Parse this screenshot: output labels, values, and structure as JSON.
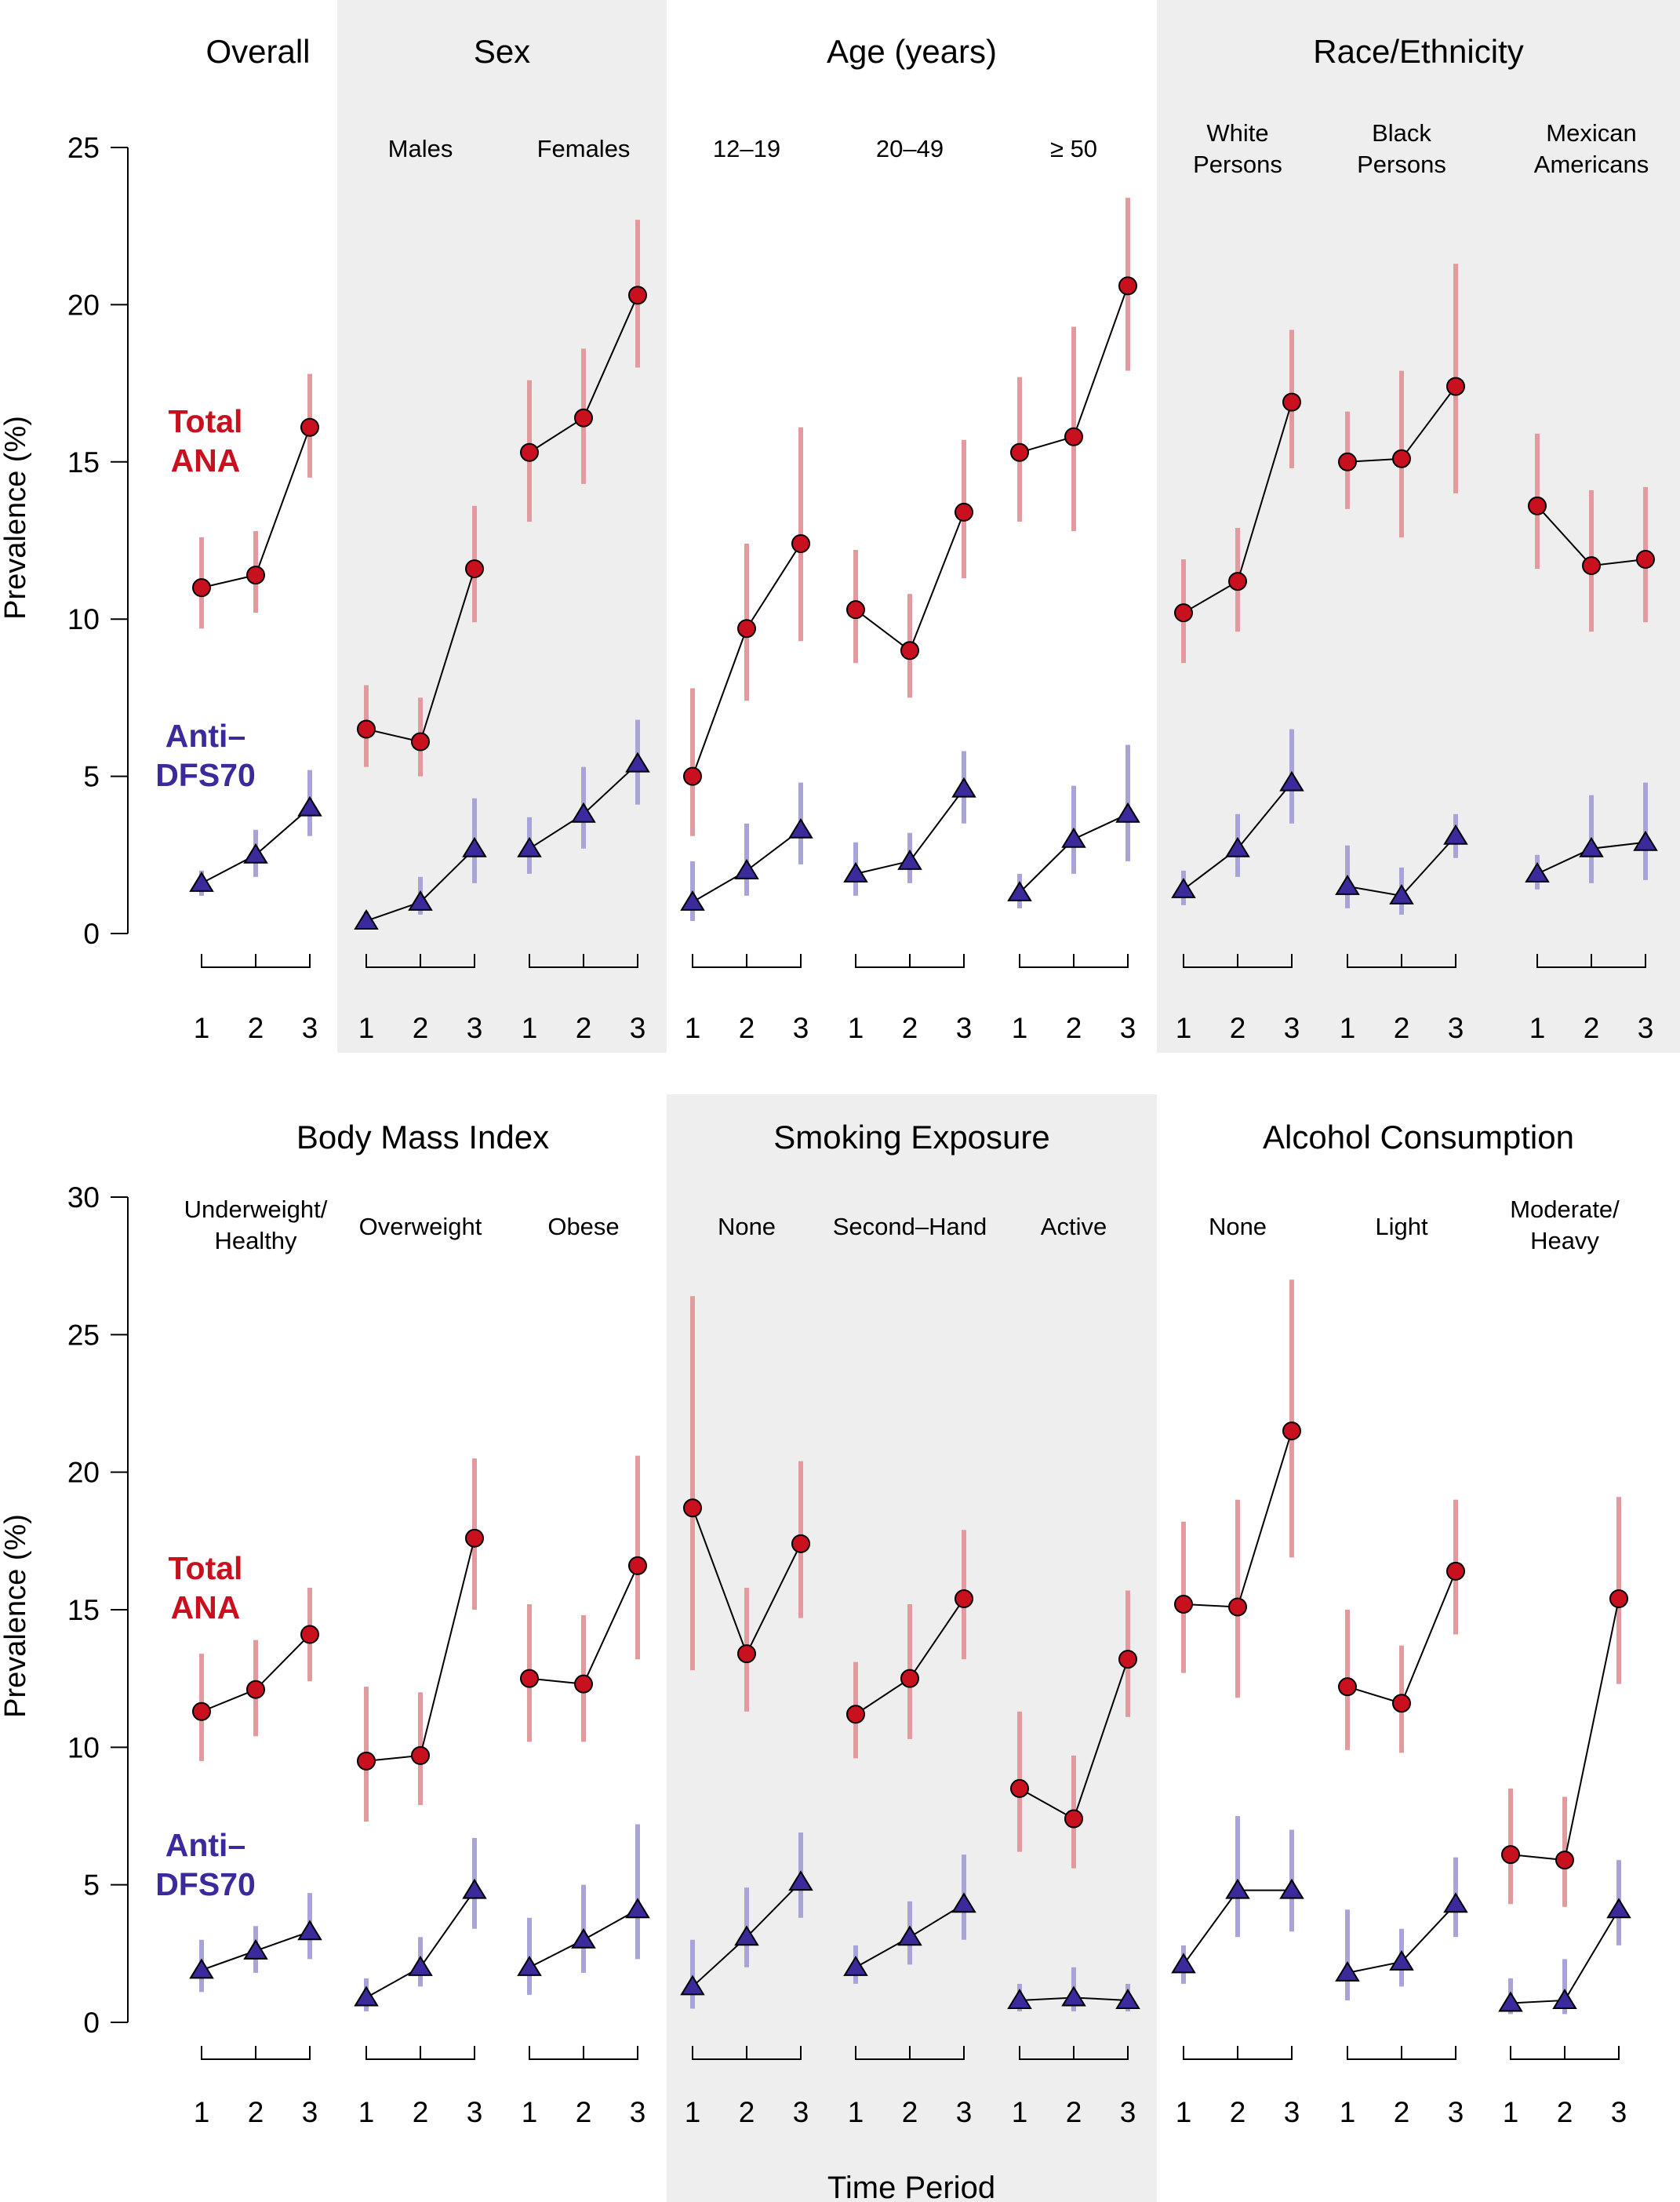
{
  "colors": {
    "ana": "#c8101e",
    "ana_ci": "#e39a9e",
    "dfs": "#3a2a9c",
    "dfs_ci": "#a8a4d8",
    "shade": "#eeeeee"
  },
  "chart_data": [
    {
      "type": "line",
      "panel": "top",
      "ylabel": "Prevalence (%)",
      "ylim": [
        0,
        25
      ],
      "yticks": [
        0,
        5,
        10,
        15,
        20,
        25
      ],
      "x": [
        1,
        2,
        3
      ],
      "xlabel": "",
      "legend": [
        {
          "line1": "Total",
          "line2": "ANA",
          "series": "Total ANA"
        },
        {
          "line1": "Anti–",
          "line2": "DFS70",
          "series": "Anti-DFS70"
        }
      ],
      "groups": [
        {
          "title": "Overall",
          "shaded": false,
          "subgroups": [
            {
              "label": [],
              "ana": [
                11.0,
                11.4,
                16.1
              ],
              "ana_ci": [
                [
                  9.7,
                  12.6
                ],
                [
                  10.2,
                  12.8
                ],
                [
                  14.5,
                  17.8
                ]
              ],
              "dfs": [
                1.6,
                2.5,
                4.0
              ],
              "dfs_ci": [
                [
                  1.2,
                  2.0
                ],
                [
                  1.8,
                  3.3
                ],
                [
                  3.1,
                  5.2
                ]
              ]
            }
          ]
        },
        {
          "title": "Sex",
          "shaded": true,
          "subgroups": [
            {
              "label": [
                "Males"
              ],
              "ana": [
                6.5,
                6.1,
                11.6
              ],
              "ana_ci": [
                [
                  5.3,
                  7.9
                ],
                [
                  5.0,
                  7.5
                ],
                [
                  9.9,
                  13.6
                ]
              ],
              "dfs": [
                0.4,
                1.0,
                2.7
              ],
              "dfs_ci": [
                [
                  0.2,
                  0.7
                ],
                [
                  0.6,
                  1.8
                ],
                [
                  1.6,
                  4.3
                ]
              ]
            },
            {
              "label": [
                "Females"
              ],
              "ana": [
                15.3,
                16.4,
                20.3
              ],
              "ana_ci": [
                [
                  13.1,
                  17.6
                ],
                [
                  14.3,
                  18.6
                ],
                [
                  18.0,
                  22.7
                ]
              ],
              "dfs": [
                2.7,
                3.8,
                5.4
              ],
              "dfs_ci": [
                [
                  1.9,
                  3.7
                ],
                [
                  2.7,
                  5.3
                ],
                [
                  4.1,
                  6.8
                ]
              ]
            }
          ]
        },
        {
          "title": "Age (years)",
          "shaded": false,
          "subgroups": [
            {
              "label": [
                "12–19"
              ],
              "ana": [
                5.0,
                9.7,
                12.4
              ],
              "ana_ci": [
                [
                  3.1,
                  7.8
                ],
                [
                  7.4,
                  12.4
                ],
                [
                  9.3,
                  16.1
                ]
              ],
              "dfs": [
                1.0,
                2.0,
                3.3
              ],
              "dfs_ci": [
                [
                  0.4,
                  2.3
                ],
                [
                  1.2,
                  3.5
                ],
                [
                  2.2,
                  4.8
                ]
              ]
            },
            {
              "label": [
                "20–49"
              ],
              "ana": [
                10.3,
                9.0,
                13.4
              ],
              "ana_ci": [
                [
                  8.6,
                  12.2
                ],
                [
                  7.5,
                  10.8
                ],
                [
                  11.3,
                  15.7
                ]
              ],
              "dfs": [
                1.9,
                2.3,
                4.6
              ],
              "dfs_ci": [
                [
                  1.2,
                  2.9
                ],
                [
                  1.6,
                  3.2
                ],
                [
                  3.5,
                  5.8
                ]
              ]
            },
            {
              "label": [
                "≥ 50"
              ],
              "ana": [
                15.3,
                15.8,
                20.6
              ],
              "ana_ci": [
                [
                  13.1,
                  17.7
                ],
                [
                  12.8,
                  19.3
                ],
                [
                  17.9,
                  23.4
                ]
              ],
              "dfs": [
                1.3,
                3.0,
                3.8
              ],
              "dfs_ci": [
                [
                  0.8,
                  1.9
                ],
                [
                  1.9,
                  4.7
                ],
                [
                  2.3,
                  6.0
                ]
              ]
            }
          ]
        },
        {
          "title": "Race/Ethnicity",
          "shaded": true,
          "subgroups": [
            {
              "label": [
                "White",
                "Persons"
              ],
              "ana": [
                10.2,
                11.2,
                16.9
              ],
              "ana_ci": [
                [
                  8.6,
                  11.9
                ],
                [
                  9.6,
                  12.9
                ],
                [
                  14.8,
                  19.2
                ]
              ],
              "dfs": [
                1.4,
                2.7,
                4.8
              ],
              "dfs_ci": [
                [
                  0.9,
                  2.0
                ],
                [
                  1.8,
                  3.8
                ],
                [
                  3.5,
                  6.5
                ]
              ]
            },
            {
              "label": [
                "Black",
                "Persons"
              ],
              "ana": [
                15.0,
                15.1,
                17.4
              ],
              "ana_ci": [
                [
                  13.5,
                  16.6
                ],
                [
                  12.6,
                  17.9
                ],
                [
                  14.0,
                  21.3
                ]
              ],
              "dfs": [
                1.5,
                1.2,
                3.1
              ],
              "dfs_ci": [
                [
                  0.8,
                  2.8
                ],
                [
                  0.6,
                  2.1
                ],
                [
                  2.4,
                  3.8
                ]
              ]
            },
            {
              "label": [
                "Mexican",
                "Americans"
              ],
              "ana": [
                13.6,
                11.7,
                11.9
              ],
              "ana_ci": [
                [
                  11.6,
                  15.9
                ],
                [
                  9.6,
                  14.1
                ],
                [
                  9.9,
                  14.2
                ]
              ],
              "dfs": [
                1.9,
                2.7,
                2.9
              ],
              "dfs_ci": [
                [
                  1.4,
                  2.5
                ],
                [
                  1.6,
                  4.4
                ],
                [
                  1.7,
                  4.8
                ]
              ]
            }
          ]
        }
      ]
    },
    {
      "type": "line",
      "panel": "bottom",
      "ylabel": "Prevalence (%)",
      "ylim": [
        0,
        30
      ],
      "yticks": [
        0,
        5,
        10,
        15,
        20,
        25,
        30
      ],
      "x": [
        1,
        2,
        3
      ],
      "xlabel": "Time Period",
      "legend": [
        {
          "line1": "Total",
          "line2": "ANA",
          "series": "Total ANA"
        },
        {
          "line1": "Anti–",
          "line2": "DFS70",
          "series": "Anti-DFS70"
        }
      ],
      "groups": [
        {
          "title": "Body Mass Index",
          "shaded": false,
          "subgroups": [
            {
              "label": [
                "Underweight/",
                "Healthy"
              ],
              "ana": [
                11.3,
                12.1,
                14.1
              ],
              "ana_ci": [
                [
                  9.5,
                  13.4
                ],
                [
                  10.4,
                  13.9
                ],
                [
                  12.4,
                  15.8
                ]
              ],
              "dfs": [
                1.9,
                2.6,
                3.3
              ],
              "dfs_ci": [
                [
                  1.1,
                  3.0
                ],
                [
                  1.8,
                  3.5
                ],
                [
                  2.3,
                  4.7
                ]
              ]
            },
            {
              "label": [
                "Overweight"
              ],
              "ana": [
                9.5,
                9.7,
                17.6
              ],
              "ana_ci": [
                [
                  7.3,
                  12.2
                ],
                [
                  7.9,
                  12.0
                ],
                [
                  15.0,
                  20.5
                ]
              ],
              "dfs": [
                0.9,
                2.0,
                4.8
              ],
              "dfs_ci": [
                [
                  0.4,
                  1.6
                ],
                [
                  1.3,
                  3.1
                ],
                [
                  3.4,
                  6.7
                ]
              ]
            },
            {
              "label": [
                "Obese"
              ],
              "ana": [
                12.5,
                12.3,
                16.6
              ],
              "ana_ci": [
                [
                  10.2,
                  15.2
                ],
                [
                  10.2,
                  14.8
                ],
                [
                  13.2,
                  20.6
                ]
              ],
              "dfs": [
                2.0,
                3.0,
                4.1
              ],
              "dfs_ci": [
                [
                  1.0,
                  3.8
                ],
                [
                  1.8,
                  5.0
                ],
                [
                  2.3,
                  7.2
                ]
              ]
            }
          ]
        },
        {
          "title": "Smoking Exposure",
          "shaded": true,
          "subgroups": [
            {
              "label": [
                "None"
              ],
              "ana": [
                18.7,
                13.4,
                17.4
              ],
              "ana_ci": [
                [
                  12.8,
                  26.4
                ],
                [
                  11.3,
                  15.8
                ],
                [
                  14.7,
                  20.4
                ]
              ],
              "dfs": [
                1.3,
                3.1,
                5.1
              ],
              "dfs_ci": [
                [
                  0.5,
                  3.0
                ],
                [
                  2.0,
                  4.9
                ],
                [
                  3.8,
                  6.9
                ]
              ]
            },
            {
              "label": [
                "Second–Hand"
              ],
              "ana": [
                11.2,
                12.5,
                15.4
              ],
              "ana_ci": [
                [
                  9.6,
                  13.1
                ],
                [
                  10.3,
                  15.2
                ],
                [
                  13.2,
                  17.9
                ]
              ],
              "dfs": [
                2.0,
                3.1,
                4.3
              ],
              "dfs_ci": [
                [
                  1.4,
                  2.8
                ],
                [
                  2.1,
                  4.4
                ],
                [
                  3.0,
                  6.1
                ]
              ]
            },
            {
              "label": [
                "Active"
              ],
              "ana": [
                8.5,
                7.4,
                13.2
              ],
              "ana_ci": [
                [
                  6.2,
                  11.3
                ],
                [
                  5.6,
                  9.7
                ],
                [
                  11.1,
                  15.7
                ]
              ],
              "dfs": [
                0.8,
                0.9,
                0.8
              ],
              "dfs_ci": [
                [
                  0.4,
                  1.4
                ],
                [
                  0.4,
                  2.0
                ],
                [
                  0.4,
                  1.4
                ]
              ]
            }
          ]
        },
        {
          "title": "Alcohol Consumption",
          "shaded": false,
          "subgroups": [
            {
              "label": [
                "None"
              ],
              "ana": [
                15.2,
                15.1,
                21.5
              ],
              "ana_ci": [
                [
                  12.7,
                  18.2
                ],
                [
                  11.8,
                  19.0
                ],
                [
                  16.9,
                  27.0
                ]
              ],
              "dfs": [
                2.1,
                4.8,
                4.8
              ],
              "dfs_ci": [
                [
                  1.4,
                  2.8
                ],
                [
                  3.1,
                  7.5
                ],
                [
                  3.3,
                  7.0
                ]
              ]
            },
            {
              "label": [
                "Light"
              ],
              "ana": [
                12.2,
                11.6,
                16.4
              ],
              "ana_ci": [
                [
                  9.9,
                  15.0
                ],
                [
                  9.8,
                  13.7
                ],
                [
                  14.1,
                  19.0
                ]
              ],
              "dfs": [
                1.8,
                2.2,
                4.3
              ],
              "dfs_ci": [
                [
                  0.8,
                  4.1
                ],
                [
                  1.3,
                  3.4
                ],
                [
                  3.1,
                  6.0
                ]
              ]
            },
            {
              "label": [
                "Moderate/",
                "Heavy"
              ],
              "ana": [
                6.1,
                5.9,
                15.4
              ],
              "ana_ci": [
                [
                  4.3,
                  8.5
                ],
                [
                  4.2,
                  8.2
                ],
                [
                  12.3,
                  19.1
                ]
              ],
              "dfs": [
                0.7,
                0.8,
                4.1
              ],
              "dfs_ci": [
                [
                  0.3,
                  1.6
                ],
                [
                  0.3,
                  2.3
                ],
                [
                  2.8,
                  5.9
                ]
              ]
            }
          ]
        }
      ]
    }
  ]
}
